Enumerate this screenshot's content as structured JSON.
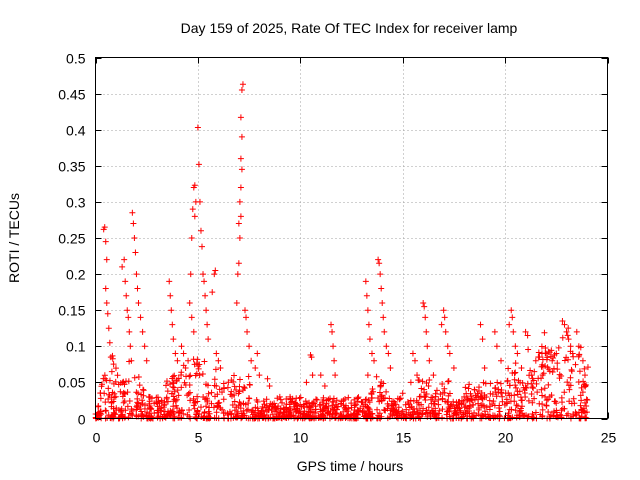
{
  "chart_data": {
    "type": "scatter",
    "title": "Day 159 of 2025, Rate Of TEC Index for receiver lamp",
    "xlabel": "GPS time / hours",
    "ylabel": "ROTI / TECUs",
    "xlim": [
      0,
      25
    ],
    "ylim": [
      0,
      0.5
    ],
    "xticks": [
      0,
      5,
      10,
      15,
      20,
      25
    ],
    "yticks": [
      0,
      0.05,
      0.1,
      0.15,
      0.2,
      0.25,
      0.3,
      0.35,
      0.4,
      0.45,
      0.5
    ],
    "grid": true,
    "marker": "+",
    "marker_color": "#ff0000",
    "series": [
      {
        "points": [
          [
            0.4,
            0.262
          ],
          [
            0.45,
            0.265
          ],
          [
            0.5,
            0.245
          ],
          [
            0.55,
            0.22
          ],
          [
            0.5,
            0.18
          ],
          [
            0.55,
            0.16
          ],
          [
            0.6,
            0.145
          ],
          [
            0.65,
            0.125
          ],
          [
            0.7,
            0.105
          ],
          [
            0.75,
            0.085
          ],
          [
            0.8,
            0.065
          ],
          [
            1.3,
            0.21
          ],
          [
            1.4,
            0.22
          ],
          [
            1.45,
            0.19
          ],
          [
            1.5,
            0.17
          ],
          [
            1.55,
            0.15
          ],
          [
            1.6,
            0.14
          ],
          [
            1.65,
            0.12
          ],
          [
            1.7,
            0.1
          ],
          [
            1.75,
            0.08
          ],
          [
            1.8,
            0.285
          ],
          [
            1.85,
            0.27
          ],
          [
            1.9,
            0.25
          ],
          [
            1.95,
            0.23
          ],
          [
            2.0,
            0.2
          ],
          [
            2.05,
            0.18
          ],
          [
            2.1,
            0.16
          ],
          [
            2.2,
            0.14
          ],
          [
            2.3,
            0.12
          ],
          [
            2.4,
            0.1
          ],
          [
            2.5,
            0.08
          ],
          [
            3.6,
            0.19
          ],
          [
            3.65,
            0.17
          ],
          [
            3.7,
            0.15
          ],
          [
            3.75,
            0.13
          ],
          [
            3.8,
            0.11
          ],
          [
            3.9,
            0.09
          ],
          [
            4.0,
            0.08
          ],
          [
            4.2,
            0.1
          ],
          [
            4.3,
            0.09
          ],
          [
            4.4,
            0.07
          ],
          [
            4.6,
            0.16
          ],
          [
            4.7,
            0.14
          ],
          [
            4.8,
            0.12
          ],
          [
            4.65,
            0.2
          ],
          [
            4.7,
            0.25
          ],
          [
            4.75,
            0.29
          ],
          [
            4.8,
            0.32
          ],
          [
            4.85,
            0.323
          ],
          [
            4.9,
            0.3
          ],
          [
            4.85,
            0.28
          ],
          [
            5.0,
            0.403
          ],
          [
            5.05,
            0.352
          ],
          [
            5.1,
            0.3
          ],
          [
            5.15,
            0.26
          ],
          [
            5.2,
            0.238
          ],
          [
            5.25,
            0.2
          ],
          [
            5.3,
            0.19
          ],
          [
            5.35,
            0.17
          ],
          [
            5.4,
            0.15
          ],
          [
            5.45,
            0.13
          ],
          [
            5.5,
            0.11
          ],
          [
            5.8,
            0.2
          ],
          [
            5.85,
            0.205
          ],
          [
            5.7,
            0.175
          ],
          [
            5.9,
            0.09
          ],
          [
            6.0,
            0.08
          ],
          [
            6.1,
            0.07
          ],
          [
            6.9,
            0.16
          ],
          [
            6.95,
            0.2
          ],
          [
            7.0,
            0.215
          ],
          [
            7.05,
            0.25
          ],
          [
            7.0,
            0.27
          ],
          [
            7.1,
            0.28
          ],
          [
            7.05,
            0.3
          ],
          [
            7.1,
            0.32
          ],
          [
            7.15,
            0.345
          ],
          [
            7.1,
            0.36
          ],
          [
            7.15,
            0.39
          ],
          [
            7.1,
            0.417
          ],
          [
            7.15,
            0.455
          ],
          [
            7.2,
            0.463
          ],
          [
            7.3,
            0.15
          ],
          [
            7.35,
            0.14
          ],
          [
            7.4,
            0.12
          ],
          [
            7.5,
            0.1
          ],
          [
            7.6,
            0.08
          ],
          [
            7.8,
            0.07
          ],
          [
            7.9,
            0.09
          ],
          [
            8.0,
            0.06
          ],
          [
            8.4,
            0.055
          ],
          [
            8.5,
            0.045
          ],
          [
            9.0,
            0.03
          ],
          [
            9.5,
            0.03
          ],
          [
            9.8,
            0.028
          ],
          [
            10.3,
            0.05
          ],
          [
            10.5,
            0.088
          ],
          [
            10.55,
            0.085
          ],
          [
            10.6,
            0.06
          ],
          [
            11.0,
            0.06
          ],
          [
            11.2,
            0.045
          ],
          [
            11.5,
            0.13
          ],
          [
            11.55,
            0.12
          ],
          [
            11.6,
            0.1
          ],
          [
            11.65,
            0.08
          ],
          [
            11.7,
            0.06
          ],
          [
            12.0,
            0.02
          ],
          [
            12.5,
            0.015
          ],
          [
            12.8,
            0.012
          ],
          [
            13.2,
            0.19
          ],
          [
            13.25,
            0.17
          ],
          [
            13.3,
            0.15
          ],
          [
            13.35,
            0.13
          ],
          [
            13.4,
            0.11
          ],
          [
            13.5,
            0.09
          ],
          [
            13.6,
            0.08
          ],
          [
            13.3,
            0.06
          ],
          [
            13.8,
            0.22
          ],
          [
            13.85,
            0.215
          ],
          [
            13.9,
            0.2
          ],
          [
            13.95,
            0.18
          ],
          [
            14.0,
            0.16
          ],
          [
            14.05,
            0.14
          ],
          [
            14.1,
            0.12
          ],
          [
            14.2,
            0.1
          ],
          [
            14.3,
            0.09
          ],
          [
            14.4,
            0.07
          ],
          [
            15.0,
            0.035
          ],
          [
            15.3,
            0.02
          ],
          [
            15.4,
            0.05
          ],
          [
            15.5,
            0.09
          ],
          [
            15.6,
            0.08
          ],
          [
            15.7,
            0.06
          ],
          [
            16.0,
            0.16
          ],
          [
            16.05,
            0.155
          ],
          [
            16.1,
            0.14
          ],
          [
            16.15,
            0.12
          ],
          [
            16.2,
            0.1
          ],
          [
            16.3,
            0.08
          ],
          [
            16.5,
            0.06
          ],
          [
            16.9,
            0.13
          ],
          [
            17.0,
            0.15
          ],
          [
            17.05,
            0.14
          ],
          [
            17.1,
            0.12
          ],
          [
            17.2,
            0.1
          ],
          [
            17.3,
            0.09
          ],
          [
            17.5,
            0.07
          ],
          [
            18.0,
            0.03
          ],
          [
            18.5,
            0.04
          ],
          [
            18.8,
            0.13
          ],
          [
            18.9,
            0.11
          ],
          [
            19.0,
            0.07
          ],
          [
            19.5,
            0.12
          ],
          [
            19.6,
            0.1
          ],
          [
            19.8,
            0.08
          ],
          [
            20.2,
            0.13
          ],
          [
            20.3,
            0.15
          ],
          [
            20.35,
            0.14
          ],
          [
            20.4,
            0.12
          ],
          [
            20.5,
            0.1
          ],
          [
            20.6,
            0.09
          ],
          [
            20.8,
            0.07
          ],
          [
            21.0,
            0.12
          ],
          [
            21.1,
            0.115
          ],
          [
            21.3,
            0.06
          ],
          [
            21.5,
            0.08
          ],
          [
            21.8,
            0.09
          ],
          [
            22.0,
            0.09
          ],
          [
            22.3,
            0.08
          ],
          [
            22.5,
            0.09
          ],
          [
            22.8,
            0.135
          ],
          [
            22.9,
            0.13
          ],
          [
            23.0,
            0.12
          ],
          [
            23.1,
            0.11
          ],
          [
            23.2,
            0.1
          ],
          [
            23.3,
            0.09
          ],
          [
            23.5,
            0.12
          ],
          [
            23.6,
            0.1
          ],
          [
            23.8,
            0.08
          ],
          [
            23.9,
            0.06
          ]
        ]
      }
    ]
  }
}
